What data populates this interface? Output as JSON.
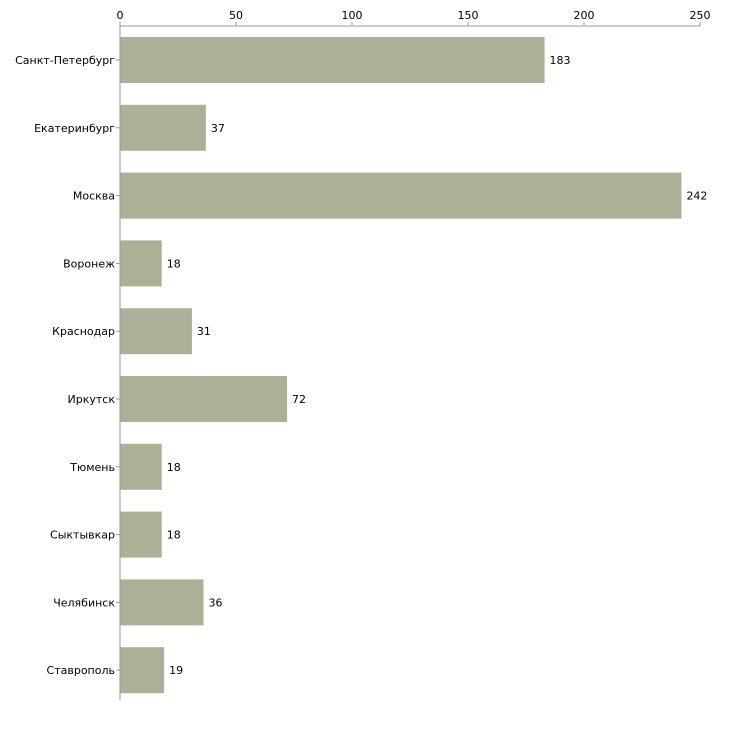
{
  "colors": {
    "bar": "#abb197",
    "axis": "#999999",
    "text": "#000000",
    "background": "#ffffff"
  },
  "chart_data": {
    "type": "bar",
    "orientation": "horizontal",
    "title": "",
    "xlabel": "",
    "ylabel": "",
    "xlim": [
      0,
      250
    ],
    "x_ticks": [
      0,
      50,
      100,
      150,
      200,
      250
    ],
    "x_axis_position": "top",
    "grid": false,
    "legend": "none",
    "categories": [
      "Санкт-Петербург",
      "Екатеринбург",
      "Москва",
      "Воронеж",
      "Краснодар",
      "Иркутск",
      "Тюмень",
      "Сыктывкар",
      "Челябинск",
      "Ставрополь"
    ],
    "values": [
      183,
      37,
      242,
      18,
      31,
      72,
      18,
      18,
      36,
      19
    ],
    "data_labels": true
  }
}
